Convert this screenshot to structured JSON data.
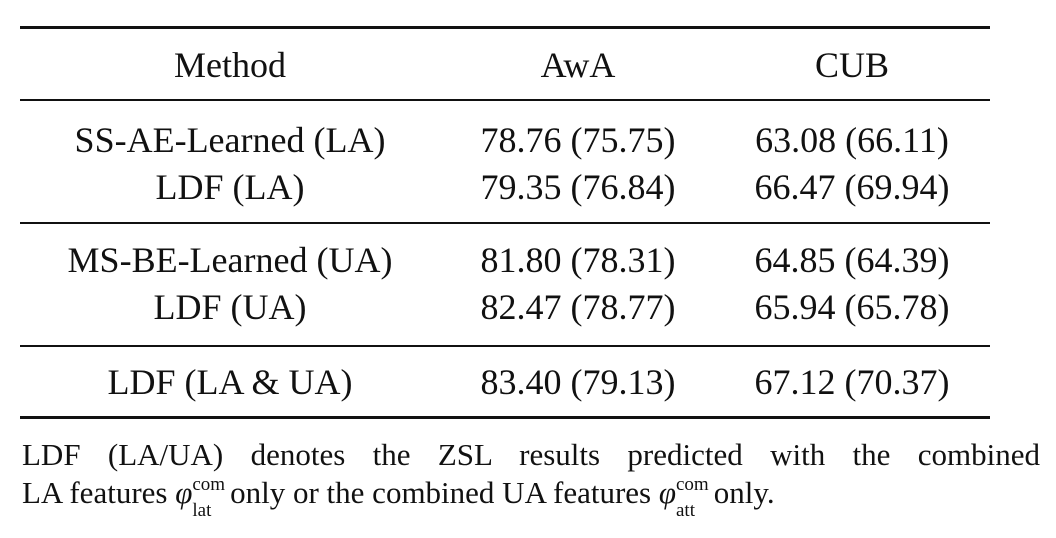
{
  "table": {
    "header": [
      "Method",
      "AwA",
      "CUB"
    ],
    "groups": [
      [
        [
          "SS-AE-Learned (LA)",
          "78.76 (75.75)",
          "63.08 (66.11)"
        ],
        [
          "LDF (LA)",
          "79.35 (76.84)",
          "66.47 (69.94)"
        ]
      ],
      [
        [
          "MS-BE-Learned (UA)",
          "81.80 (78.31)",
          "64.85 (64.39)"
        ],
        [
          "LDF (UA)",
          "82.47 (78.77)",
          "65.94 (65.78)"
        ]
      ],
      [
        [
          "LDF (LA & UA)",
          "83.40 (79.13)",
          "67.12 (70.37)"
        ]
      ]
    ]
  },
  "caption": {
    "lines": [
      [
        {
          "text": "LDF (LA/UA) denotes the ZSL results predicted with the combined"
        }
      ],
      [
        {
          "text": "LA features "
        },
        {
          "symbol": "φ",
          "sup": "com",
          "sub": "lat"
        },
        {
          "text": " only or the combined UA features "
        },
        {
          "symbol": "φ",
          "sup": "com",
          "sub": "att"
        },
        {
          "text": " only."
        }
      ]
    ]
  }
}
